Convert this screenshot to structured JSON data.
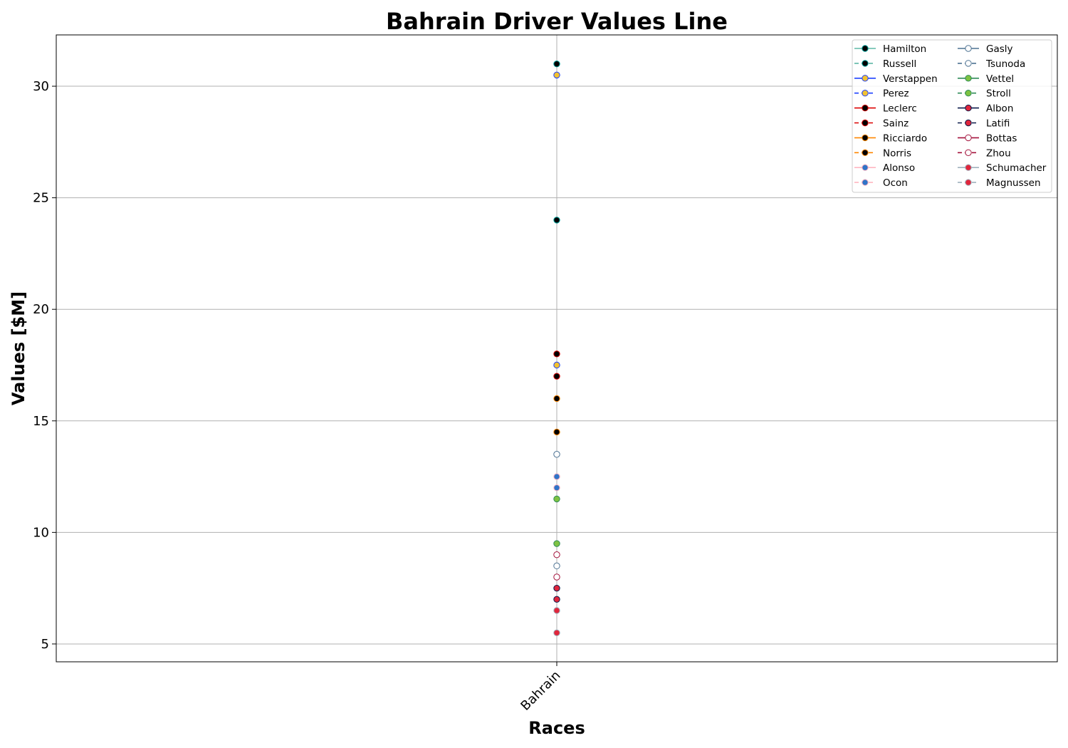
{
  "chart_data": {
    "type": "line",
    "title": "Bahrain Driver Values Line",
    "xlabel": "Races",
    "ylabel": "Values [$M]",
    "categories": [
      "Bahrain"
    ],
    "yticks": [
      5,
      10,
      15,
      20,
      25,
      30
    ],
    "ylim": [
      4.2,
      32.3
    ],
    "grid": true,
    "legend": {
      "position": "top-right",
      "columns": 2
    },
    "series": [
      {
        "name": "Hamilton",
        "values": [
          31.0
        ],
        "line_color": "#5fb8a6",
        "marker_fill": "#000000",
        "marker_edge": "#00a19b",
        "dashed": false
      },
      {
        "name": "Russell",
        "values": [
          24.0
        ],
        "line_color": "#5fb8a6",
        "marker_fill": "#000000",
        "marker_edge": "#00a19b",
        "dashed": true
      },
      {
        "name": "Verstappen",
        "values": [
          30.5
        ],
        "line_color": "#1e41ff",
        "marker_fill": "#f2c230",
        "marker_edge": "#1e41ff",
        "dashed": false
      },
      {
        "name": "Perez",
        "values": [
          17.5
        ],
        "line_color": "#1e41ff",
        "marker_fill": "#f2c230",
        "marker_edge": "#1e41ff",
        "dashed": true
      },
      {
        "name": "Leclerc",
        "values": [
          18.0
        ],
        "line_color": "#dc0000",
        "marker_fill": "#000000",
        "marker_edge": "#dc0000",
        "dashed": false
      },
      {
        "name": "Sainz",
        "values": [
          17.0
        ],
        "line_color": "#dc0000",
        "marker_fill": "#000000",
        "marker_edge": "#dc0000",
        "dashed": true
      },
      {
        "name": "Ricciardo",
        "values": [
          16.0
        ],
        "line_color": "#ff8700",
        "marker_fill": "#000000",
        "marker_edge": "#ff8700",
        "dashed": false
      },
      {
        "name": "Norris",
        "values": [
          14.5
        ],
        "line_color": "#ff8700",
        "marker_fill": "#000000",
        "marker_edge": "#ff8700",
        "dashed": true
      },
      {
        "name": "Alonso",
        "values": [
          12.0
        ],
        "line_color": "#ffb6c1",
        "marker_fill": "#2f74c8",
        "marker_edge": "#ffb6c1",
        "dashed": false
      },
      {
        "name": "Ocon",
        "values": [
          12.5
        ],
        "line_color": "#ffb6c1",
        "marker_fill": "#2f74c8",
        "marker_edge": "#ffb6c1",
        "dashed": true
      },
      {
        "name": "Gasly",
        "values": [
          13.5
        ],
        "line_color": "#4d7292",
        "marker_fill": "#ffffff",
        "marker_edge": "#4d7292",
        "dashed": false
      },
      {
        "name": "Tsunoda",
        "values": [
          8.5
        ],
        "line_color": "#4d7292",
        "marker_fill": "#ffffff",
        "marker_edge": "#4d7292",
        "dashed": true
      },
      {
        "name": "Vettel",
        "values": [
          11.5
        ],
        "line_color": "#2e8b57",
        "marker_fill": "#7ec242",
        "marker_edge": "#2e8b57",
        "dashed": false
      },
      {
        "name": "Stroll",
        "values": [
          9.5
        ],
        "line_color": "#2e8b57",
        "marker_fill": "#7ec242",
        "marker_edge": "#2e8b57",
        "dashed": true
      },
      {
        "name": "Albon",
        "values": [
          7.0
        ],
        "line_color": "#0a1a4a",
        "marker_fill": "#e0263c",
        "marker_edge": "#0a1a4a",
        "dashed": false
      },
      {
        "name": "Latifi",
        "values": [
          7.5
        ],
        "line_color": "#0a1a4a",
        "marker_fill": "#e0263c",
        "marker_edge": "#0a1a4a",
        "dashed": true
      },
      {
        "name": "Bottas",
        "values": [
          8.0
        ],
        "line_color": "#a4133c",
        "marker_fill": "#ffffff",
        "marker_edge": "#a4133c",
        "dashed": false
      },
      {
        "name": "Zhou",
        "values": [
          9.0
        ],
        "line_color": "#a4133c",
        "marker_fill": "#ffffff",
        "marker_edge": "#a4133c",
        "dashed": true
      },
      {
        "name": "Schumacher",
        "values": [
          6.5
        ],
        "line_color": "#9fb0bd",
        "marker_fill": "#e0263c",
        "marker_edge": "#9fb0bd",
        "dashed": false
      },
      {
        "name": "Magnussen",
        "values": [
          5.5
        ],
        "line_color": "#9fb0bd",
        "marker_fill": "#e0263c",
        "marker_edge": "#9fb0bd",
        "dashed": true
      }
    ]
  }
}
